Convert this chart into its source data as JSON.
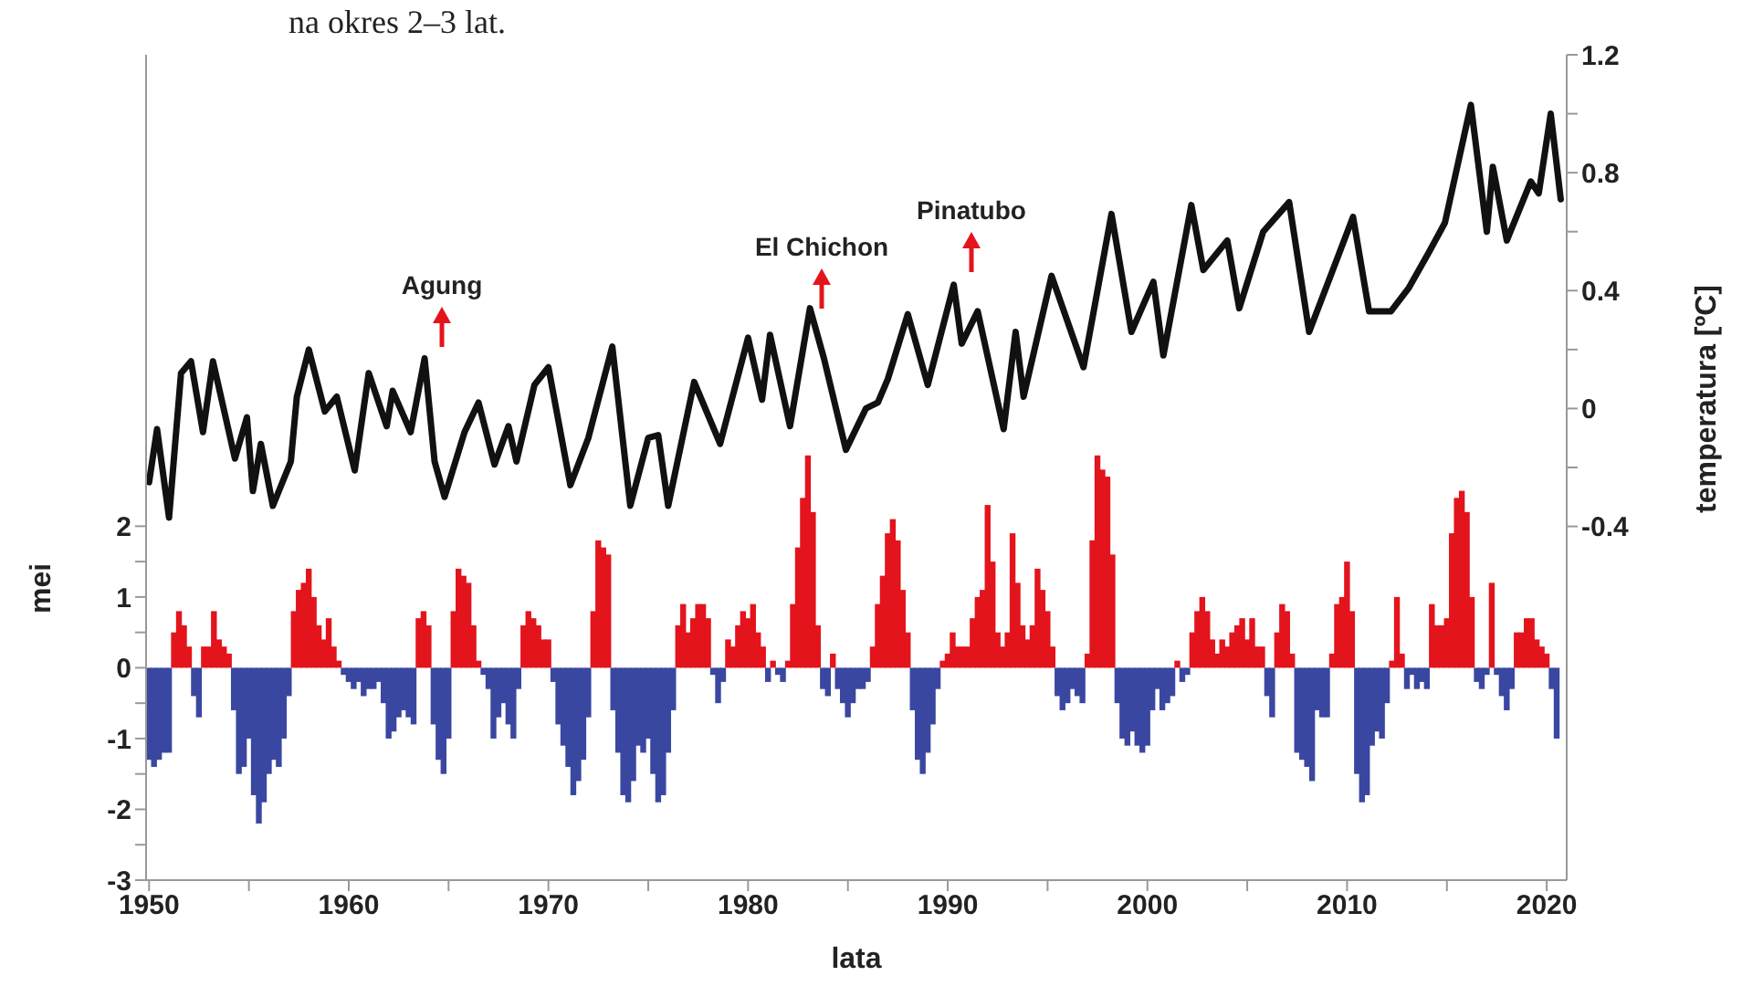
{
  "chart_data": {
    "type": "bar",
    "stacked": true,
    "xlabel": "lata",
    "ylabel": "mei",
    "y2label": "temperatura [ºC]",
    "annotations": [
      "na okres 2–3 lat.",
      "Agung",
      "El Chichon",
      "Pinatubo"
    ],
    "xlim": [
      1949.85,
      2021
    ],
    "xticks": [
      1950,
      {
        "value": 1955,
        "label": null
      },
      1960,
      {
        "value": 1965,
        "label": null
      },
      1970,
      {
        "value": 1975,
        "label": null
      },
      1980,
      {
        "value": 1985,
        "label": null
      },
      1990,
      {
        "value": 1995,
        "label": null
      },
      2000,
      {
        "value": 2005,
        "label": null
      },
      2010,
      {
        "value": 2015,
        "label": null
      },
      2020
    ],
    "ylim": [
      -3,
      8.66
    ],
    "yticks": [
      -3,
      {
        "value": -2.5,
        "label": null
      },
      -2,
      {
        "value": -1.5,
        "label": null
      },
      -1,
      {
        "value": -0.5,
        "label": null
      },
      0,
      {
        "value": 0.5,
        "label": null
      },
      1,
      {
        "value": 1.5,
        "label": null
      },
      2
    ],
    "y2lim": [
      -1.6,
      1.2
    ],
    "y2ticks": [
      -0.4,
      {
        "value": -0.2,
        "label": null
      },
      0,
      {
        "value": 0.2,
        "label": null
      },
      0.4,
      {
        "value": 0.6,
        "label": null
      },
      0.8,
      {
        "value": 1.0,
        "label": null
      },
      1.2
    ],
    "x": [
      1950,
      1950.25,
      1950.5,
      1950.75,
      1951,
      1951.25,
      1951.5,
      1951.75,
      1952,
      1952.25,
      1952.5,
      1952.75,
      1953,
      1953.25,
      1953.5,
      1953.75,
      1954,
      1954.25,
      1954.5,
      1954.75,
      1955,
      1955.25,
      1955.5,
      1955.75,
      1956,
      1956.25,
      1956.5,
      1956.75,
      1957,
      1957.25,
      1957.5,
      1957.75,
      1958,
      1958.25,
      1958.5,
      1958.75,
      1959,
      1959.25,
      1959.5,
      1959.75,
      1960,
      1960.25,
      1960.5,
      1960.75,
      1961,
      1961.25,
      1961.5,
      1961.75,
      1962,
      1962.25,
      1962.5,
      1962.75,
      1963,
      1963.25,
      1963.5,
      1963.75,
      1964,
      1964.25,
      1964.5,
      1964.75,
      1965,
      1965.25,
      1965.5,
      1965.75,
      1966,
      1966.25,
      1966.5,
      1966.75,
      1967,
      1967.25,
      1967.5,
      1967.75,
      1968,
      1968.25,
      1968.5,
      1968.75,
      1969,
      1969.25,
      1969.5,
      1969.75,
      1970,
      1970.25,
      1970.5,
      1970.75,
      1971,
      1971.25,
      1971.5,
      1971.75,
      1972,
      1972.25,
      1972.5,
      1972.75,
      1973,
      1973.25,
      1973.5,
      1973.75,
      1974,
      1974.25,
      1974.5,
      1974.75,
      1975,
      1975.25,
      1975.5,
      1975.75,
      1976,
      1976.25,
      1976.5,
      1976.75,
      1977,
      1977.25,
      1977.5,
      1977.75,
      1978,
      1978.25,
      1978.5,
      1978.75,
      1979,
      1979.25,
      1979.5,
      1979.75,
      1980,
      1980.25,
      1980.5,
      1980.75,
      1981,
      1981.25,
      1981.5,
      1981.75,
      1982,
      1982.25,
      1982.5,
      1982.75,
      1983,
      1983.25,
      1983.5,
      1983.75,
      1984,
      1984.25,
      1984.5,
      1984.75,
      1985,
      1985.25,
      1985.5,
      1985.75,
      1986,
      1986.25,
      1986.5,
      1986.75,
      1987,
      1987.25,
      1987.5,
      1987.75,
      1988,
      1988.25,
      1988.5,
      1988.75,
      1989,
      1989.25,
      1989.5,
      1989.75,
      1990,
      1990.25,
      1990.5,
      1990.75,
      1991,
      1991.25,
      1991.5,
      1991.75,
      1992,
      1992.25,
      1992.5,
      1992.75,
      1993,
      1993.25,
      1993.5,
      1993.75,
      1994,
      1994.25,
      1994.5,
      1994.75,
      1995,
      1995.25,
      1995.5,
      1995.75,
      1996,
      1996.25,
      1996.5,
      1996.75,
      1997,
      1997.25,
      1997.5,
      1997.75,
      1998,
      1998.25,
      1998.5,
      1998.75,
      1999,
      1999.25,
      1999.5,
      1999.75,
      2000,
      2000.25,
      2000.5,
      2000.75,
      2001,
      2001.25,
      2001.5,
      2001.75,
      2002,
      2002.25,
      2002.5,
      2002.75,
      2003,
      2003.25,
      2003.5,
      2003.75,
      2004,
      2004.25,
      2004.5,
      2004.75,
      2005,
      2005.25,
      2005.5,
      2005.75,
      2006,
      2006.25,
      2006.5,
      2006.75,
      2007,
      2007.25,
      2007.5,
      2007.75,
      2008,
      2008.25,
      2008.5,
      2008.75,
      2009,
      2009.25,
      2009.5,
      2009.75,
      2010,
      2010.25,
      2010.5,
      2010.75,
      2011,
      2011.25,
      2011.5,
      2011.75,
      2012,
      2012.25,
      2012.5,
      2012.75,
      2013,
      2013.25,
      2013.5,
      2013.75,
      2014,
      2014.25,
      2014.5,
      2014.75,
      2015,
      2015.25,
      2015.5,
      2015.75,
      2016,
      2016.25,
      2016.5,
      2016.75,
      2017,
      2017.25,
      2017.5,
      2017.75,
      2018,
      2018.25,
      2018.5,
      2018.75,
      2019,
      2019.25,
      2019.5,
      2019.75,
      2020,
      2020.25,
      2020.5
    ],
    "series": [
      {
        "color": "#e3141c",
        "values": [
          null,
          null,
          null,
          null,
          null,
          0.5,
          0.8,
          0.6,
          0.3,
          null,
          null,
          0.3,
          0.3,
          0.8,
          0.4,
          0.3,
          0.2,
          null,
          null,
          null,
          null,
          null,
          null,
          null,
          null,
          null,
          null,
          null,
          null,
          0.8,
          1.1,
          1.2,
          1.4,
          1.0,
          0.6,
          0.4,
          0.7,
          0.3,
          0.1,
          null,
          null,
          null,
          null,
          null,
          null,
          null,
          null,
          null,
          null,
          null,
          null,
          null,
          null,
          null,
          0.7,
          0.8,
          0.6,
          null,
          null,
          null,
          null,
          0.8,
          1.4,
          1.3,
          1.2,
          0.6,
          0.1,
          null,
          null,
          null,
          null,
          null,
          null,
          null,
          null,
          0.6,
          0.8,
          0.7,
          0.6,
          0.4,
          0.4,
          null,
          null,
          null,
          null,
          null,
          null,
          null,
          null,
          0.8,
          1.8,
          1.7,
          1.6,
          null,
          null,
          null,
          null,
          null,
          null,
          null,
          null,
          null,
          null,
          null,
          null,
          null,
          0.6,
          0.9,
          0.5,
          0.7,
          0.9,
          0.9,
          0.7,
          null,
          null,
          null,
          0.4,
          0.3,
          0.6,
          0.8,
          0.7,
          0.9,
          0.5,
          0.3,
          null,
          0.1,
          null,
          null,
          0.1,
          0.9,
          1.7,
          2.4,
          3.0,
          2.2,
          0.6,
          null,
          null,
          0.2,
          null,
          null,
          null,
          null,
          null,
          null,
          null,
          0.3,
          0.9,
          1.3,
          1.9,
          2.1,
          1.8,
          1.1,
          0.5,
          null,
          null,
          null,
          null,
          null,
          null,
          0.1,
          0.2,
          0.5,
          0.3,
          0.3,
          0.3,
          0.7,
          1.0,
          1.1,
          2.3,
          1.5,
          0.5,
          0.3,
          0.5,
          1.9,
          1.2,
          0.6,
          0.4,
          0.6,
          1.4,
          1.1,
          0.8,
          0.3,
          null,
          null,
          null,
          null,
          null,
          null,
          0.2,
          1.8,
          3.0,
          2.8,
          2.7,
          1.6,
          null,
          null,
          null,
          null,
          null,
          null,
          null,
          null,
          null,
          null,
          null,
          null,
          0.1,
          null,
          null,
          0.5,
          0.8,
          1.0,
          0.8,
          0.4,
          0.2,
          0.4,
          0.3,
          0.5,
          0.6,
          0.7,
          0.4,
          0.7,
          0.3,
          0.3,
          null,
          null,
          0.5,
          0.9,
          0.8,
          0.2,
          null,
          null,
          null,
          null,
          null,
          null,
          null,
          0.2,
          0.9,
          1.0,
          1.5,
          0.8,
          null,
          null,
          null,
          null,
          null,
          null,
          null,
          0.1,
          1.0,
          0.2,
          null,
          null,
          null,
          null,
          null,
          0.9,
          0.6,
          0.6,
          0.7,
          1.9,
          2.4,
          2.5,
          2.2,
          1.0,
          null,
          null,
          null,
          1.2,
          null,
          null,
          null,
          null,
          0.5,
          0.5,
          0.7,
          0.7,
          0.4,
          0.3,
          0.2,
          null,
          null
        ]
      },
      {
        "color": "#3a47a1",
        "values": [
          -1.3,
          -1.4,
          -1.3,
          -1.2,
          -1.2,
          null,
          null,
          null,
          null,
          -0.4,
          -0.7,
          null,
          null,
          null,
          null,
          null,
          null,
          -0.6,
          -1.5,
          -1.4,
          -1.0,
          -1.8,
          -2.2,
          -1.9,
          -1.5,
          -1.3,
          -1.4,
          -1.0,
          -0.4,
          null,
          null,
          null,
          null,
          null,
          null,
          null,
          null,
          null,
          null,
          -0.1,
          -0.2,
          -0.3,
          -0.2,
          -0.4,
          -0.3,
          -0.3,
          -0.2,
          -0.5,
          -1.0,
          -0.9,
          -0.7,
          -0.6,
          -0.7,
          -0.8,
          null,
          null,
          null,
          -0.8,
          -1.3,
          -1.5,
          -1.0,
          null,
          null,
          null,
          null,
          null,
          null,
          -0.1,
          -0.3,
          -1.0,
          -0.7,
          -0.5,
          -0.8,
          -1.0,
          -0.3,
          null,
          null,
          null,
          null,
          null,
          null,
          -0.2,
          -0.8,
          -1.1,
          -1.4,
          -1.8,
          -1.6,
          -1.3,
          -0.7,
          null,
          null,
          null,
          null,
          -0.6,
          -1.2,
          -1.8,
          -1.9,
          -1.6,
          -1.1,
          -1.2,
          -1.0,
          -1.5,
          -1.9,
          -1.8,
          -1.2,
          -0.6,
          null,
          null,
          null,
          null,
          null,
          null,
          null,
          -0.1,
          -0.5,
          -0.2,
          null,
          null,
          null,
          null,
          null,
          null,
          null,
          null,
          -0.2,
          null,
          -0.1,
          -0.2,
          null,
          null,
          null,
          null,
          null,
          null,
          null,
          -0.3,
          -0.4,
          null,
          -0.3,
          -0.5,
          -0.7,
          -0.5,
          -0.3,
          -0.3,
          -0.2,
          null,
          null,
          null,
          null,
          null,
          null,
          null,
          null,
          -0.6,
          -1.3,
          -1.5,
          -1.2,
          -0.8,
          -0.3,
          null,
          null,
          null,
          null,
          null,
          null,
          null,
          null,
          null,
          null,
          null,
          null,
          null,
          null,
          null,
          null,
          null,
          null,
          null,
          null,
          null,
          null,
          null,
          -0.4,
          -0.6,
          -0.5,
          -0.3,
          -0.4,
          -0.5,
          null,
          null,
          null,
          null,
          null,
          null,
          -0.5,
          -1.0,
          -1.1,
          -0.9,
          -1.1,
          -1.2,
          -1.1,
          -0.6,
          -0.3,
          -0.6,
          -0.5,
          -0.4,
          null,
          -0.2,
          -0.1,
          null,
          null,
          null,
          null,
          null,
          null,
          null,
          null,
          null,
          null,
          null,
          null,
          null,
          null,
          null,
          -0.4,
          -0.7,
          null,
          null,
          null,
          null,
          -1.2,
          -1.3,
          -1.4,
          -1.6,
          -0.6,
          -0.7,
          -0.7,
          null,
          null,
          null,
          null,
          null,
          -1.5,
          -1.9,
          -1.8,
          -1.1,
          -0.9,
          -1.0,
          -0.5,
          null,
          null,
          null,
          -0.3,
          -0.1,
          -0.3,
          -0.2,
          -0.3,
          null,
          null,
          null,
          null,
          null,
          null,
          null,
          null,
          null,
          -0.2,
          -0.3,
          -0.1,
          null,
          -0.1,
          -0.4,
          -0.6,
          -0.3,
          null,
          null,
          null,
          null,
          null,
          null,
          null,
          -0.3,
          -1.0
        ]
      },
      {
        "type": "line",
        "axis": "y2",
        "color": "#111111",
        "x": [
          1950.0,
          1950.4,
          1951.0,
          1951.6,
          1952.1,
          1952.7,
          1953.2,
          1954.3,
          1954.9,
          1955.2,
          1955.6,
          1956.2,
          1957.1,
          1957.4,
          1958.0,
          1958.8,
          1959.4,
          1960.3,
          1961.0,
          1961.9,
          1962.2,
          1963.1,
          1963.8,
          1964.3,
          1964.8,
          1965.8,
          1966.5,
          1967.3,
          1968.0,
          1968.4,
          1969.3,
          1970.0,
          1971.1,
          1972.0,
          1973.2,
          1974.1,
          1975.0,
          1975.5,
          1976.0,
          1977.3,
          1978.6,
          1980.0,
          1980.7,
          1981.1,
          1982.1,
          1983.1,
          1983.8,
          1984.9,
          1985.9,
          1986.5,
          1987.0,
          1988.0,
          1989.0,
          1990.3,
          1990.7,
          1991.5,
          1992.8,
          1993.4,
          1993.8,
          1995.2,
          1996.8,
          1998.2,
          1999.2,
          2000.3,
          2000.8,
          2002.2,
          2002.8,
          2004.0,
          2004.6,
          2005.8,
          2007.1,
          2008.1,
          2009.4,
          2010.3,
          2011.1,
          2012.2,
          2013.1,
          2014.1,
          2014.9,
          2016.2,
          2017.0,
          2017.3,
          2018.0,
          2019.2,
          2019.6,
          2020.2,
          2020.7
        ],
        "values": [
          -0.25,
          -0.07,
          -0.37,
          0.12,
          0.16,
          -0.08,
          0.16,
          -0.17,
          -0.03,
          -0.28,
          -0.12,
          -0.33,
          -0.18,
          0.04,
          0.2,
          -0.01,
          0.04,
          -0.21,
          0.12,
          -0.06,
          0.06,
          -0.08,
          0.17,
          -0.18,
          -0.3,
          -0.08,
          0.02,
          -0.19,
          -0.06,
          -0.18,
          0.08,
          0.14,
          -0.26,
          -0.1,
          0.21,
          -0.33,
          -0.1,
          -0.09,
          -0.33,
          0.09,
          -0.12,
          0.24,
          0.03,
          0.25,
          -0.06,
          0.34,
          0.17,
          -0.14,
          0.0,
          0.02,
          0.1,
          0.32,
          0.08,
          0.42,
          0.22,
          0.33,
          -0.07,
          0.26,
          0.04,
          0.45,
          0.14,
          0.66,
          0.26,
          0.43,
          0.18,
          0.69,
          0.47,
          0.57,
          0.34,
          0.6,
          0.7,
          0.26,
          0.49,
          0.65,
          0.33,
          0.33,
          0.41,
          0.53,
          0.63,
          1.03,
          0.6,
          0.82,
          0.57,
          0.77,
          0.73,
          1.0,
          0.71
        ]
      }
    ]
  }
}
